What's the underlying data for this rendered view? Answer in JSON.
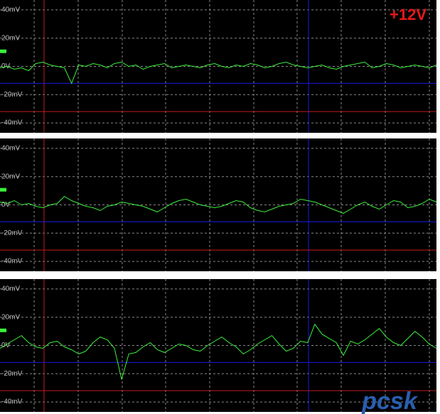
{
  "chart_data": [
    {
      "type": "line",
      "title": "+12V",
      "color": "#3cf03c",
      "grid": true,
      "ylim": [
        -47,
        47
      ],
      "yticks": [
        {
          "value": 40,
          "label": "40mV"
        },
        {
          "value": 20,
          "label": "20mV"
        },
        {
          "value": 0,
          "label": "0V"
        },
        {
          "value": -20,
          "label": "-20mV"
        },
        {
          "value": -40,
          "label": "-40mV"
        }
      ],
      "cursors": [
        {
          "value": -12,
          "color": "#1a1ad8"
        },
        {
          "value": -32,
          "color": "#c01c1c"
        }
      ],
      "values": [
        -1,
        0,
        -2,
        -1,
        -3,
        2,
        3,
        1,
        0,
        -1,
        -12,
        1,
        0,
        2,
        1,
        -1,
        2,
        3,
        0,
        1,
        -2,
        0,
        1,
        2,
        -1,
        0,
        1,
        0,
        -1,
        1,
        2,
        0,
        -1,
        1,
        0,
        2,
        1,
        -1,
        0,
        2,
        3,
        1,
        0,
        -1,
        0,
        1,
        -1,
        -2,
        0,
        1,
        2,
        3,
        -1,
        0,
        2,
        1,
        -1,
        0,
        1,
        0,
        -1,
        1
      ]
    },
    {
      "type": "line",
      "color": "#3cf03c",
      "grid": true,
      "ylim": [
        -47,
        47
      ],
      "yticks": [
        {
          "value": 40,
          "label": "40mV"
        },
        {
          "value": 20,
          "label": "20mV"
        },
        {
          "value": 0,
          "label": "0V"
        },
        {
          "value": -20,
          "label": "-20mV"
        },
        {
          "value": -40,
          "label": "-40mV"
        }
      ],
      "cursors": [
        {
          "value": -12,
          "color": "#1a1ad8"
        },
        {
          "value": -32,
          "color": "#c01c1c"
        }
      ],
      "values": [
        2,
        1,
        3,
        0,
        1,
        -1,
        -2,
        0,
        1,
        6,
        3,
        1,
        -1,
        -2,
        -4,
        -1,
        0,
        2,
        1,
        0,
        -1,
        -3,
        -5,
        -2,
        1,
        3,
        4,
        2,
        0,
        -1,
        -2,
        -1,
        1,
        3,
        2,
        -2,
        -4,
        -5,
        -3,
        -1,
        0,
        1,
        4,
        3,
        2,
        0,
        -2,
        -4,
        -6,
        -3,
        0,
        2,
        -1,
        -3,
        0,
        3,
        2,
        -2,
        -1,
        1,
        4,
        2
      ]
    },
    {
      "type": "line",
      "color": "#3cf03c",
      "grid": true,
      "ylim": [
        -47,
        47
      ],
      "yticks": [
        {
          "value": 40,
          "label": "40mV"
        },
        {
          "value": 20,
          "label": "20mV"
        },
        {
          "value": 0,
          "label": "0V"
        },
        {
          "value": -20,
          "label": "-20mV"
        },
        {
          "value": -40,
          "label": "-40mV"
        }
      ],
      "cursors": [
        {
          "value": -12,
          "color": "#1a1ad8"
        },
        {
          "value": -32,
          "color": "#c01c1c"
        }
      ],
      "values": [
        -2,
        1,
        4,
        7,
        2,
        -1,
        -2,
        2,
        3,
        -1,
        -3,
        -6,
        -4,
        2,
        6,
        4,
        -2,
        -24,
        -6,
        -5,
        -1,
        2,
        -3,
        -5,
        -2,
        1,
        0,
        -3,
        -4,
        0,
        3,
        6,
        2,
        -1,
        -6,
        -3,
        1,
        4,
        7,
        1,
        -4,
        -2,
        3,
        2,
        15,
        8,
        5,
        2,
        -7,
        3,
        1,
        4,
        8,
        12,
        6,
        2,
        0,
        5,
        10,
        6,
        1,
        -2
      ]
    }
  ],
  "watermark": "pcsk"
}
